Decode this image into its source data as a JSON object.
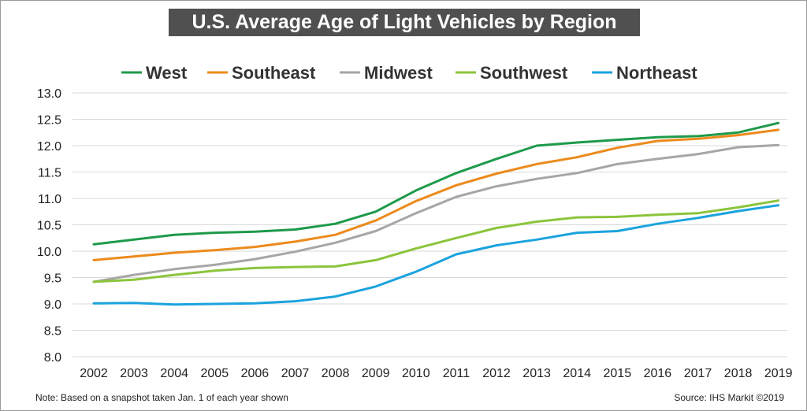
{
  "chart_data": {
    "type": "line",
    "title": "U.S. Average Age of Light Vehicles by Region",
    "xlabel": "",
    "ylabel": "",
    "categories": [
      "2002",
      "2003",
      "2004",
      "2005",
      "2006",
      "2007",
      "2008",
      "2009",
      "2010",
      "2011",
      "2012",
      "2013",
      "2014",
      "2015",
      "2016",
      "2017",
      "2018",
      "2019"
    ],
    "ylim": [
      8.0,
      13.0
    ],
    "yticks": [
      "8.0",
      "8.5",
      "9.0",
      "9.5",
      "10.0",
      "10.5",
      "11.0",
      "11.5",
      "12.0",
      "12.5",
      "13.0"
    ],
    "grid": true,
    "legend_position": "top",
    "series": [
      {
        "name": "West",
        "color": "#1e9a4a",
        "values": [
          10.13,
          10.22,
          10.31,
          10.35,
          10.37,
          10.41,
          10.52,
          10.75,
          11.15,
          11.48,
          11.75,
          12.0,
          12.06,
          12.11,
          12.16,
          12.18,
          12.25,
          12.43
        ]
      },
      {
        "name": "Southeast",
        "color": "#ec8a1c",
        "values": [
          9.83,
          9.9,
          9.97,
          10.02,
          10.08,
          10.18,
          10.31,
          10.58,
          10.95,
          11.25,
          11.47,
          11.65,
          11.78,
          11.96,
          12.09,
          12.13,
          12.2,
          12.3
        ]
      },
      {
        "name": "Midwest",
        "color": "#a6a6a6",
        "values": [
          9.42,
          9.55,
          9.66,
          9.74,
          9.85,
          9.99,
          10.16,
          10.38,
          10.72,
          11.03,
          11.23,
          11.37,
          11.48,
          11.65,
          11.75,
          11.84,
          11.97,
          12.01
        ]
      },
      {
        "name": "Southwest",
        "color": "#8cc43c",
        "values": [
          9.42,
          9.46,
          9.55,
          9.63,
          9.68,
          9.7,
          9.71,
          9.83,
          10.05,
          10.25,
          10.44,
          10.56,
          10.64,
          10.65,
          10.69,
          10.72,
          10.83,
          10.96
        ]
      },
      {
        "name": "Northeast",
        "color": "#1ba3dd",
        "values": [
          9.01,
          9.02,
          8.99,
          9.0,
          9.01,
          9.05,
          9.14,
          9.33,
          9.61,
          9.94,
          10.11,
          10.22,
          10.35,
          10.38,
          10.52,
          10.63,
          10.76,
          10.87
        ]
      }
    ]
  },
  "footer": {
    "note": "Note: Based on a snapshot taken Jan. 1 of each year shown",
    "source": "Source: IHS Markit ©2019"
  }
}
